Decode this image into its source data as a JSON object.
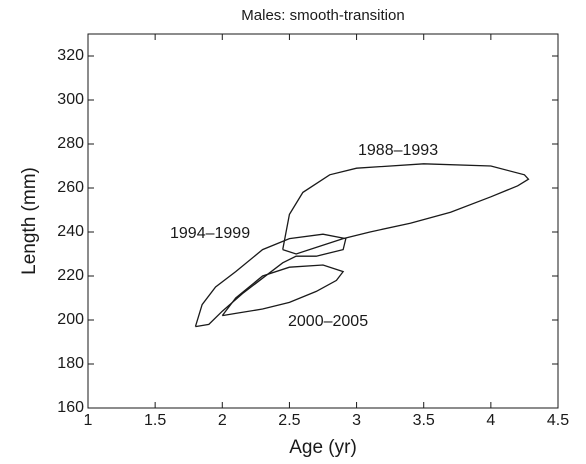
{
  "chart_data": {
    "type": "line",
    "title": "Males: smooth-transition",
    "xlabel": "Age (yr)",
    "ylabel": "Length (mm)",
    "xlim": [
      1,
      4.5
    ],
    "ylim": [
      160,
      330
    ],
    "xticks": [
      1,
      1.5,
      2,
      2.5,
      3,
      3.5,
      4,
      4.5
    ],
    "yticks": [
      160,
      180,
      200,
      220,
      240,
      260,
      280,
      300,
      320
    ],
    "series": [
      {
        "name": "1988–1993",
        "color": "#1a1a1a",
        "x": [
          2.45,
          2.5,
          2.6,
          2.8,
          3.0,
          3.5,
          4.0,
          4.25,
          4.28,
          4.2,
          4.0,
          3.7,
          3.4,
          3.1,
          2.9,
          2.7,
          2.55,
          2.45
        ],
        "values": [
          232,
          248,
          258,
          266,
          269,
          271,
          270,
          266,
          264,
          261,
          256,
          249,
          244,
          240,
          237,
          233,
          230,
          232
        ]
      },
      {
        "name": "1994–1999",
        "color": "#1a1a1a",
        "x": [
          1.8,
          1.85,
          1.95,
          2.1,
          2.3,
          2.5,
          2.75,
          2.92,
          2.9,
          2.7,
          2.55,
          2.45,
          2.3,
          2.15,
          2.0,
          1.9,
          1.8
        ],
        "values": [
          197,
          207,
          215,
          222,
          232,
          237,
          239,
          237,
          232,
          229,
          229,
          226,
          219,
          212,
          204,
          198,
          197
        ]
      },
      {
        "name": "2000–2005",
        "color": "#1a1a1a",
        "x": [
          2.0,
          2.1,
          2.3,
          2.5,
          2.75,
          2.9,
          2.85,
          2.7,
          2.5,
          2.3,
          2.1,
          2.0
        ],
        "values": [
          202,
          210,
          220,
          224,
          225,
          222,
          218,
          213,
          208,
          205,
          203,
          202
        ]
      }
    ]
  }
}
